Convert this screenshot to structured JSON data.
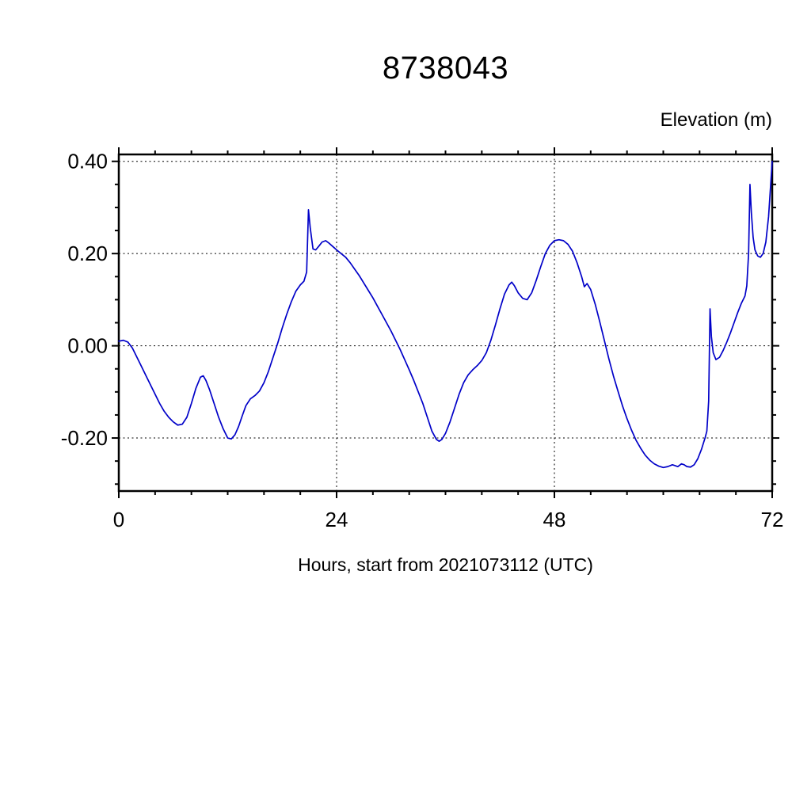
{
  "header": {
    "title": "8738043"
  },
  "chart_data": {
    "type": "line",
    "title": "8738043",
    "xlabel": "Hours, start from 2021073112 (UTC)",
    "ylabel": "Elevation (m)",
    "ylabel_position": "top-right",
    "xlim": [
      0,
      72
    ],
    "ylim": [
      -0.315,
      0.415
    ],
    "x_major_ticks": [
      0,
      24,
      48,
      72
    ],
    "x_tick_labels": [
      "0",
      "24",
      "48",
      "72"
    ],
    "x_minor_step": 4,
    "y_major_ticks": [
      0.4,
      0.2,
      0.0,
      -0.2
    ],
    "y_tick_labels": [
      "0.40",
      "0.20",
      "0.00",
      "-0.20"
    ],
    "y_minor_step": 0.05,
    "grid_x": [
      24,
      48
    ],
    "grid_y": [
      0.4,
      0.2,
      0.0,
      -0.2
    ],
    "grid_style": "dashed",
    "legend": "none",
    "line_color": "#0000C8",
    "frame_color": "#000000",
    "series": [
      {
        "name": "Elevation",
        "points": [
          [
            0,
            0.01
          ],
          [
            0.5,
            0.012
          ],
          [
            1,
            0.008
          ],
          [
            1.5,
            -0.005
          ],
          [
            2,
            -0.025
          ],
          [
            2.5,
            -0.045
          ],
          [
            3,
            -0.065
          ],
          [
            3.5,
            -0.085
          ],
          [
            4,
            -0.105
          ],
          [
            4.5,
            -0.125
          ],
          [
            5,
            -0.142
          ],
          [
            5.5,
            -0.155
          ],
          [
            6,
            -0.165
          ],
          [
            6.5,
            -0.172
          ],
          [
            7,
            -0.17
          ],
          [
            7.5,
            -0.155
          ],
          [
            8,
            -0.125
          ],
          [
            8.5,
            -0.092
          ],
          [
            9,
            -0.068
          ],
          [
            9.3,
            -0.065
          ],
          [
            9.6,
            -0.075
          ],
          [
            10,
            -0.095
          ],
          [
            10.5,
            -0.125
          ],
          [
            11,
            -0.155
          ],
          [
            11.5,
            -0.18
          ],
          [
            12,
            -0.2
          ],
          [
            12.4,
            -0.202
          ],
          [
            12.8,
            -0.193
          ],
          [
            13.2,
            -0.175
          ],
          [
            13.6,
            -0.152
          ],
          [
            14,
            -0.13
          ],
          [
            14.5,
            -0.115
          ],
          [
            15,
            -0.108
          ],
          [
            15.5,
            -0.098
          ],
          [
            16,
            -0.08
          ],
          [
            16.5,
            -0.055
          ],
          [
            17,
            -0.025
          ],
          [
            17.5,
            0.005
          ],
          [
            18,
            0.038
          ],
          [
            18.5,
            0.068
          ],
          [
            19,
            0.095
          ],
          [
            19.5,
            0.118
          ],
          [
            20,
            0.132
          ],
          [
            20.4,
            0.14
          ],
          [
            20.7,
            0.16
          ],
          [
            20.9,
            0.295
          ],
          [
            21.1,
            0.255
          ],
          [
            21.4,
            0.21
          ],
          [
            21.7,
            0.208
          ],
          [
            22,
            0.215
          ],
          [
            22.4,
            0.225
          ],
          [
            22.8,
            0.228
          ],
          [
            23.2,
            0.222
          ],
          [
            23.6,
            0.215
          ],
          [
            24,
            0.208
          ],
          [
            24.5,
            0.2
          ],
          [
            25,
            0.192
          ],
          [
            25.5,
            0.18
          ],
          [
            26,
            0.166
          ],
          [
            26.5,
            0.152
          ],
          [
            27,
            0.136
          ],
          [
            27.5,
            0.12
          ],
          [
            28,
            0.104
          ],
          [
            28.5,
            0.086
          ],
          [
            29,
            0.068
          ],
          [
            29.5,
            0.05
          ],
          [
            30,
            0.032
          ],
          [
            30.5,
            0.012
          ],
          [
            31,
            -0.008
          ],
          [
            31.5,
            -0.03
          ],
          [
            32,
            -0.052
          ],
          [
            32.5,
            -0.075
          ],
          [
            33,
            -0.1
          ],
          [
            33.5,
            -0.125
          ],
          [
            34,
            -0.155
          ],
          [
            34.5,
            -0.185
          ],
          [
            35,
            -0.203
          ],
          [
            35.3,
            -0.207
          ],
          [
            35.6,
            -0.203
          ],
          [
            36,
            -0.19
          ],
          [
            36.5,
            -0.165
          ],
          [
            37,
            -0.135
          ],
          [
            37.5,
            -0.105
          ],
          [
            38,
            -0.08
          ],
          [
            38.5,
            -0.063
          ],
          [
            39,
            -0.052
          ],
          [
            39.5,
            -0.043
          ],
          [
            40,
            -0.032
          ],
          [
            40.5,
            -0.015
          ],
          [
            41,
            0.012
          ],
          [
            41.5,
            0.045
          ],
          [
            42,
            0.08
          ],
          [
            42.5,
            0.112
          ],
          [
            43,
            0.132
          ],
          [
            43.3,
            0.138
          ],
          [
            43.6,
            0.13
          ],
          [
            44,
            0.115
          ],
          [
            44.5,
            0.103
          ],
          [
            45,
            0.1
          ],
          [
            45.5,
            0.115
          ],
          [
            46,
            0.142
          ],
          [
            46.5,
            0.172
          ],
          [
            47,
            0.2
          ],
          [
            47.5,
            0.218
          ],
          [
            48,
            0.228
          ],
          [
            48.5,
            0.23
          ],
          [
            49,
            0.228
          ],
          [
            49.5,
            0.22
          ],
          [
            50,
            0.205
          ],
          [
            50.5,
            0.18
          ],
          [
            51,
            0.15
          ],
          [
            51.3,
            0.128
          ],
          [
            51.6,
            0.135
          ],
          [
            52,
            0.122
          ],
          [
            52.5,
            0.09
          ],
          [
            53,
            0.052
          ],
          [
            53.5,
            0.012
          ],
          [
            54,
            -0.028
          ],
          [
            54.5,
            -0.065
          ],
          [
            55,
            -0.098
          ],
          [
            55.5,
            -0.13
          ],
          [
            56,
            -0.158
          ],
          [
            56.5,
            -0.183
          ],
          [
            57,
            -0.205
          ],
          [
            57.5,
            -0.222
          ],
          [
            58,
            -0.237
          ],
          [
            58.5,
            -0.248
          ],
          [
            59,
            -0.256
          ],
          [
            59.5,
            -0.261
          ],
          [
            60,
            -0.264
          ],
          [
            60.5,
            -0.262
          ],
          [
            61,
            -0.258
          ],
          [
            61.3,
            -0.26
          ],
          [
            61.6,
            -0.262
          ],
          [
            62,
            -0.256
          ],
          [
            62.3,
            -0.258
          ],
          [
            62.6,
            -0.262
          ],
          [
            63,
            -0.263
          ],
          [
            63.4,
            -0.258
          ],
          [
            63.8,
            -0.245
          ],
          [
            64.2,
            -0.225
          ],
          [
            64.6,
            -0.2
          ],
          [
            64.8,
            -0.185
          ],
          [
            65,
            -0.12
          ],
          [
            65.15,
            0.08
          ],
          [
            65.3,
            0.02
          ],
          [
            65.5,
            -0.015
          ],
          [
            65.8,
            -0.03
          ],
          [
            66.2,
            -0.025
          ],
          [
            66.6,
            -0.01
          ],
          [
            67,
            0.008
          ],
          [
            67.4,
            0.028
          ],
          [
            67.8,
            0.05
          ],
          [
            68.2,
            0.072
          ],
          [
            68.6,
            0.092
          ],
          [
            69,
            0.108
          ],
          [
            69.2,
            0.13
          ],
          [
            69.4,
            0.2
          ],
          [
            69.55,
            0.35
          ],
          [
            69.7,
            0.29
          ],
          [
            69.9,
            0.235
          ],
          [
            70.1,
            0.208
          ],
          [
            70.4,
            0.195
          ],
          [
            70.7,
            0.192
          ],
          [
            71,
            0.2
          ],
          [
            71.3,
            0.225
          ],
          [
            71.6,
            0.28
          ],
          [
            71.8,
            0.34
          ],
          [
            72,
            0.4
          ]
        ]
      }
    ]
  }
}
